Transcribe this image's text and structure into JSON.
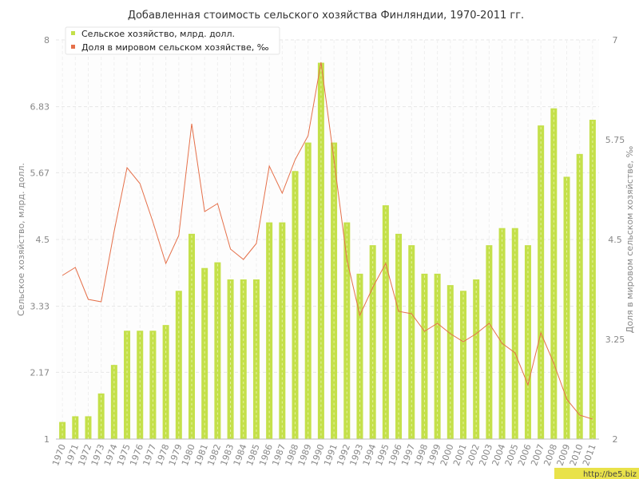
{
  "chart_data": {
    "type": "bar",
    "title": "Добавленная стоимость сельского хозяйства Финляндии, 1970-2011 гг.",
    "categories": [
      "1970",
      "1971",
      "1972",
      "1973",
      "1974",
      "1975",
      "1976",
      "1977",
      "1978",
      "1979",
      "1980",
      "1981",
      "1982",
      "1983",
      "1984",
      "1985",
      "1986",
      "1987",
      "1988",
      "1989",
      "1990",
      "1991",
      "1992",
      "1993",
      "1994",
      "1995",
      "1996",
      "1997",
      "1998",
      "1999",
      "2000",
      "2001",
      "2002",
      "2003",
      "2004",
      "2005",
      "2006",
      "2007",
      "2008",
      "2009",
      "2010",
      "2011"
    ],
    "series": [
      {
        "name": "Сельское хозяйство, млрд. долл.",
        "type": "bar",
        "axis": "left",
        "color": "#c4e04a",
        "values": [
          1.3,
          1.4,
          1.4,
          1.8,
          2.3,
          2.9,
          2.9,
          2.9,
          3.0,
          3.6,
          4.6,
          4.0,
          4.1,
          3.8,
          3.8,
          3.8,
          4.8,
          4.8,
          5.7,
          6.2,
          7.6,
          6.2,
          4.8,
          3.9,
          4.4,
          5.1,
          4.6,
          4.4,
          3.9,
          3.9,
          3.7,
          3.6,
          3.8,
          4.4,
          4.7,
          4.7,
          4.4,
          6.5,
          6.8,
          5.6,
          6.0,
          6.6
        ]
      },
      {
        "name": "Доля в мировом сельском хозяйстве, ‰",
        "type": "line",
        "axis": "right",
        "color": "#e5704a",
        "values": [
          4.05,
          4.15,
          3.75,
          3.72,
          4.6,
          5.4,
          5.2,
          4.72,
          4.2,
          4.55,
          5.95,
          4.85,
          4.95,
          4.38,
          4.25,
          4.45,
          5.42,
          5.08,
          5.5,
          5.8,
          6.72,
          5.5,
          4.25,
          3.55,
          3.9,
          4.2,
          3.6,
          3.57,
          3.35,
          3.45,
          3.32,
          3.22,
          3.32,
          3.45,
          3.2,
          3.08,
          2.68,
          3.33,
          2.95,
          2.5,
          2.3,
          2.25
        ]
      }
    ],
    "y_left": {
      "label": "Сельское хозяйство, млрд. долл.",
      "lim": [
        1,
        8
      ],
      "ticks": [
        "1",
        "2.17",
        "3.33",
        "4.5",
        "5.67",
        "6.83",
        "8"
      ]
    },
    "y_right": {
      "label": "Доля в мировом сельском хозяйстве, ‰",
      "lim": [
        2,
        7
      ],
      "ticks": [
        "2",
        "3.25",
        "4.5",
        "5.75",
        "7"
      ]
    },
    "grid": true,
    "legend_position": "top-left"
  },
  "watermark": "http://be5.biz"
}
